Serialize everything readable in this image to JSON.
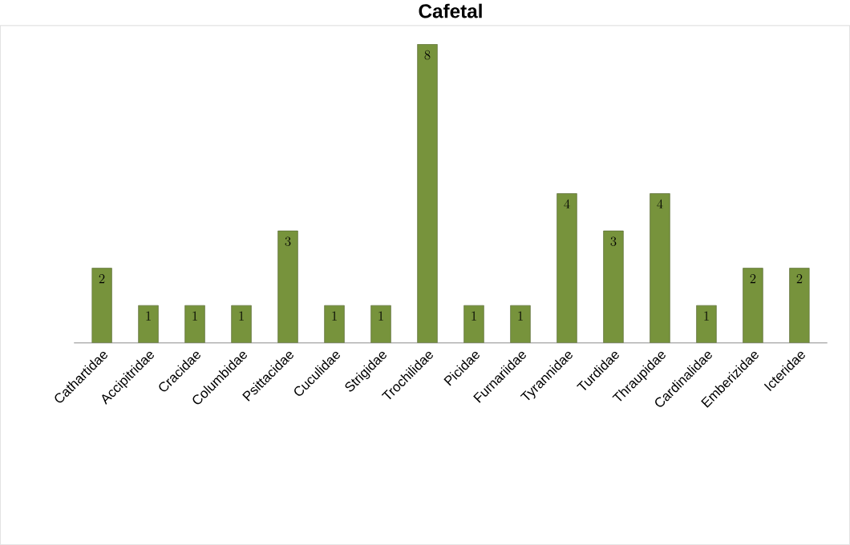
{
  "chart_data": {
    "type": "bar",
    "title": "Cafetal",
    "categories": [
      "Cathartidae",
      "Accipitridae",
      "Cracidae",
      "Columbidae",
      "Psittacidae",
      "Cuculidae",
      "Strigidae",
      "Trochilidae",
      "Picidae",
      "Furnariidae",
      "Tyrannidae",
      "Turdidae",
      "Thraupidae",
      "Cardinalidae",
      "Emberizidae",
      "Icteridae"
    ],
    "values": [
      2,
      1,
      1,
      1,
      3,
      1,
      1,
      8,
      1,
      1,
      4,
      3,
      4,
      1,
      2,
      2
    ],
    "color": "#77933c",
    "data_labels": true
  }
}
